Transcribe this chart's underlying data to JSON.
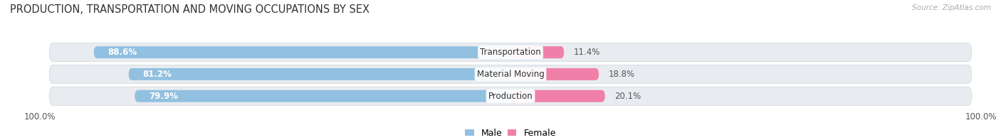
{
  "title": "PRODUCTION, TRANSPORTATION AND MOVING OCCUPATIONS BY SEX",
  "source": "Source: ZipAtlas.com",
  "categories": [
    "Transportation",
    "Material Moving",
    "Production"
  ],
  "male_pct": [
    88.6,
    81.2,
    79.9
  ],
  "female_pct": [
    11.4,
    18.8,
    20.1
  ],
  "male_color": "#92c0e0",
  "female_color": "#f080a8",
  "row_bg_color": "#e8ecf0",
  "title_fontsize": 10.5,
  "label_fontsize": 8.5,
  "pct_fontsize": 8.5,
  "tick_fontsize": 8.5,
  "legend_fontsize": 9,
  "left_axis_label": "100.0%",
  "right_axis_label": "100.0%"
}
